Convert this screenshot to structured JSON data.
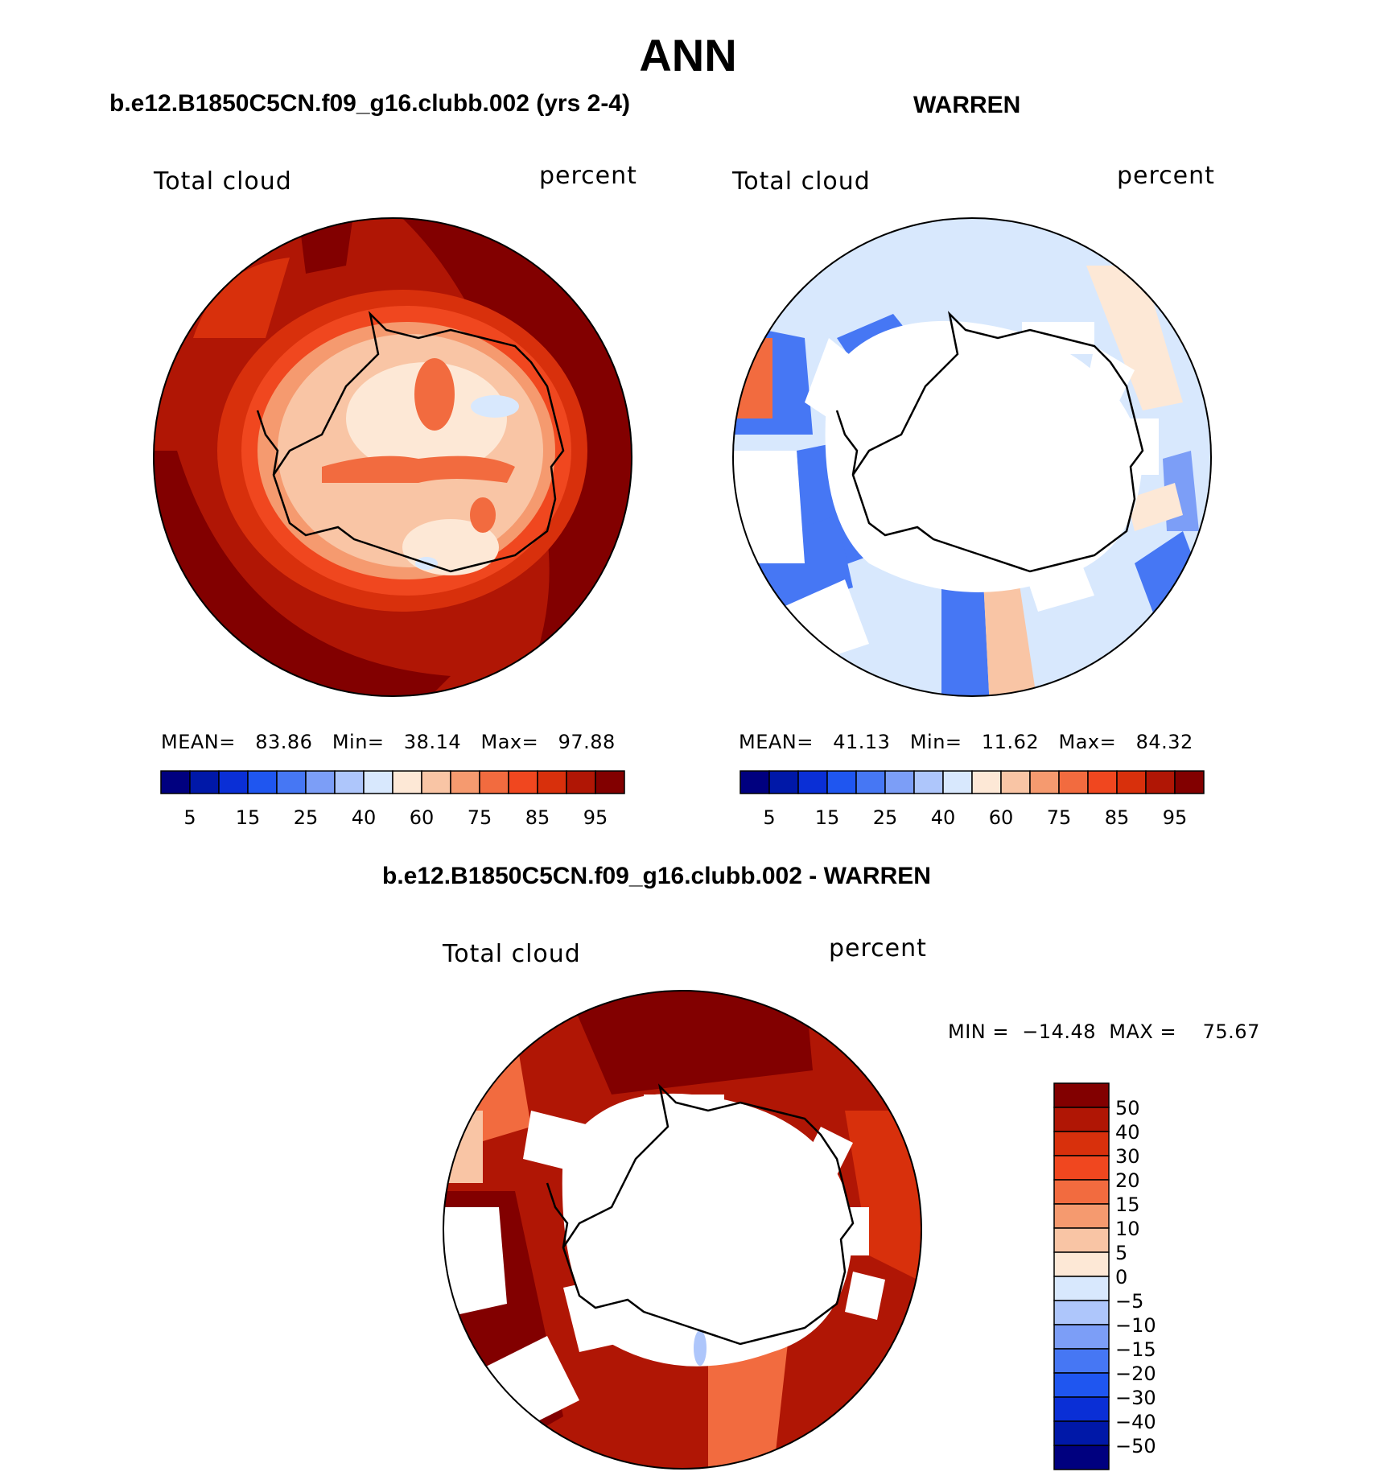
{
  "title": "ANN",
  "panels": [
    {
      "title": "b.e12.B1850C5CN.f09_g16.clubb.002 (yrs 2-4)",
      "variable_label": "Total cloud",
      "units_label": "percent",
      "stats": "MEAN=   83.86   Min=   38.14   Max=   97.88"
    },
    {
      "title": "WARREN",
      "variable_label": "Total cloud",
      "units_label": "percent",
      "stats": "MEAN=   41.13   Min=   11.62   Max=   84.32"
    },
    {
      "title": "b.e12.B1850C5CN.f09_g16.clubb.002 - WARREN",
      "variable_label": "Total cloud",
      "units_label": "percent",
      "stats": "MIN =  −14.48  MAX =    75.67"
    }
  ],
  "colorbar_abs": {
    "colors": [
      "#00007f",
      "#0018a8",
      "#0a2fd6",
      "#1f56f0",
      "#4677f4",
      "#7c9ef7",
      "#aec6fb",
      "#d8e8fd",
      "#fde8d6",
      "#f9c5a5",
      "#f59a6f",
      "#f26b3f",
      "#f0471f",
      "#d8300c",
      "#b01605",
      "#820000"
    ],
    "tick_labels": [
      "5",
      "15",
      "25",
      "40",
      "60",
      "75",
      "85",
      "95"
    ]
  },
  "colorbar_diff": {
    "colors": [
      "#00007f",
      "#0018a8",
      "#0a2fd6",
      "#1f56f0",
      "#4677f4",
      "#7c9ef7",
      "#aec6fb",
      "#d8e8fd",
      "#fde8d6",
      "#f9c5a5",
      "#f59a6f",
      "#f26b3f",
      "#f0471f",
      "#d8300c",
      "#b01605",
      "#820000"
    ],
    "tick_labels": [
      "−50",
      "−40",
      "−30",
      "−20",
      "−15",
      "−10",
      "−5",
      "0",
      "5",
      "10",
      "15",
      "20",
      "30",
      "40",
      "50"
    ]
  }
}
